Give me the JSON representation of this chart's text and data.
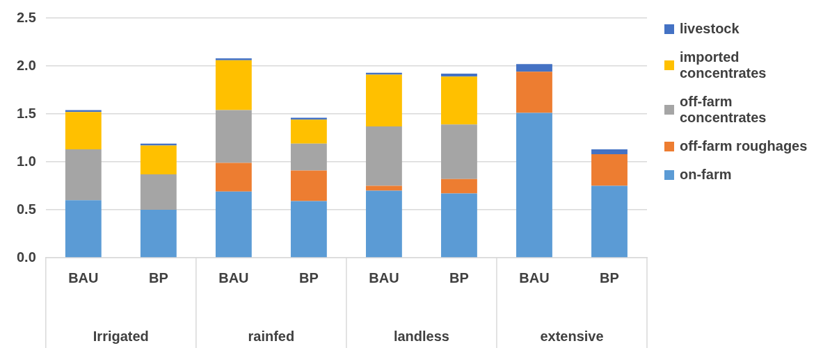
{
  "chart_data": {
    "type": "bar",
    "stacked": true,
    "categories": [
      "BAU",
      "BP",
      "BAU",
      "BP",
      "BAU",
      "BP",
      "BAU",
      "BP"
    ],
    "annotations": [
      "Irrigated",
      "rainfed",
      "landless",
      "extensive"
    ],
    "series": [
      {
        "name": "on-farm",
        "color": "#5b9bd5",
        "values": [
          0.6,
          0.5,
          0.69,
          0.59,
          0.7,
          0.67,
          1.51,
          0.75
        ]
      },
      {
        "name": "off-farm roughages",
        "color": "#ed7d31",
        "values": [
          0,
          0,
          0.3,
          0.32,
          0.05,
          0.15,
          0.43,
          0.33
        ]
      },
      {
        "name": "off-farm concentrates",
        "color": "#a5a5a5",
        "values": [
          0.53,
          0.37,
          0.55,
          0.28,
          0.62,
          0.57,
          0,
          0
        ]
      },
      {
        "name": "imported concentrates",
        "color": "#ffc000",
        "values": [
          0.39,
          0.3,
          0.52,
          0.25,
          0.54,
          0.5,
          0,
          0
        ]
      },
      {
        "name": "livestock",
        "color": "#4472c4",
        "values": [
          0.02,
          0.02,
          0.02,
          0.02,
          0.02,
          0.03,
          0.08,
          0.05
        ]
      }
    ],
    "ylim": [
      0,
      2.5
    ],
    "yticks": [
      {
        "value": 0,
        "label": "0.0"
      },
      {
        "value": 0.5,
        "label": "0.5"
      },
      {
        "value": 1,
        "label": "1.0"
      },
      {
        "value": 1.5,
        "label": "1.5"
      },
      {
        "value": 2,
        "label": "2.0"
      },
      {
        "value": 2.5,
        "label": "2.5"
      }
    ],
    "grid": "y",
    "legend": "right"
  }
}
